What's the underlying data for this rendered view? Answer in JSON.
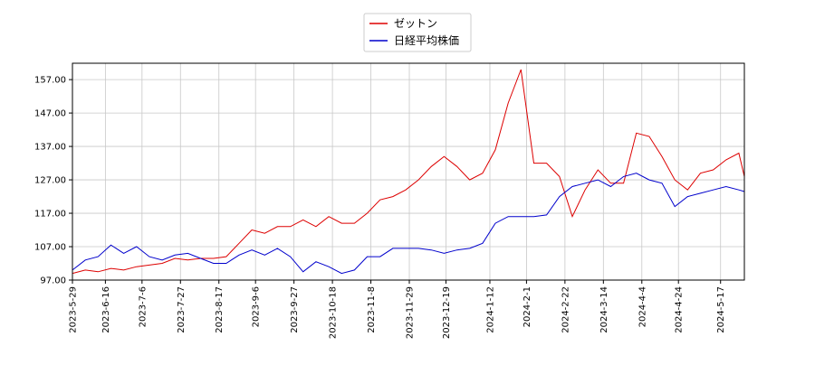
{
  "chart_data": {
    "type": "line",
    "x": [
      "2023-5-29",
      "2023-6-5",
      "2023-6-12",
      "2023-6-19",
      "2023-6-26",
      "2023-7-3",
      "2023-7-10",
      "2023-7-17",
      "2023-7-24",
      "2023-7-31",
      "2023-8-7",
      "2023-8-14",
      "2023-8-21",
      "2023-8-28",
      "2023-9-4",
      "2023-9-11",
      "2023-9-18",
      "2023-9-25",
      "2023-10-2",
      "2023-10-9",
      "2023-10-16",
      "2023-10-23",
      "2023-10-30",
      "2023-11-6",
      "2023-11-13",
      "2023-11-20",
      "2023-11-27",
      "2023-12-4",
      "2023-12-11",
      "2023-12-18",
      "2023-12-25",
      "2024-1-1",
      "2024-1-8",
      "2024-1-15",
      "2024-1-22",
      "2024-1-29",
      "2024-2-5",
      "2024-2-12",
      "2024-2-19",
      "2024-2-26",
      "2024-3-4",
      "2024-3-11",
      "2024-3-18",
      "2024-3-25",
      "2024-4-1",
      "2024-4-8",
      "2024-4-15",
      "2024-4-22",
      "2024-4-29",
      "2024-5-6",
      "2024-5-13",
      "2024-5-20",
      "2024-5-27",
      "2024-5-30"
    ],
    "series": [
      {
        "name": "ゼットン",
        "color": "#dd0000",
        "values": [
          99,
          100,
          99.5,
          100.5,
          100,
          101,
          101.5,
          102,
          103.5,
          103,
          103.5,
          103.5,
          104,
          108,
          112,
          111,
          113,
          113,
          115,
          113,
          116,
          114,
          114,
          117,
          121,
          122,
          124,
          127,
          131,
          134,
          131,
          127,
          129,
          136,
          150,
          160,
          132,
          132,
          128,
          116,
          124,
          130,
          126,
          126,
          141,
          140,
          134,
          127,
          124,
          129,
          130,
          133,
          135,
          128
        ]
      },
      {
        "name": "日経平均株価",
        "color": "#0000cc",
        "values": [
          100,
          103,
          104,
          107.5,
          105,
          107,
          104,
          103,
          104.5,
          105,
          103.5,
          102,
          102,
          104.5,
          106,
          104.5,
          106.5,
          104,
          99.5,
          102.5,
          101,
          99,
          100,
          104,
          104,
          106.5,
          106.5,
          106.5,
          106,
          105,
          106,
          106.5,
          108,
          114,
          116,
          116,
          116,
          116.5,
          122,
          125,
          126,
          127,
          125,
          128,
          129,
          127,
          126,
          119,
          122,
          123,
          124,
          125,
          124,
          123.5
        ]
      }
    ],
    "xlim": [
      "2023-5-29",
      "2024-5-30"
    ],
    "xticks": [
      "2023-5-29",
      "2023-6-16",
      "2023-7-6",
      "2023-7-27",
      "2023-8-17",
      "2023-9-6",
      "2023-9-27",
      "2023-10-18",
      "2023-11-8",
      "2023-11-29",
      "2023-12-19",
      "2024-1-12",
      "2024-2-1",
      "2024-2-22",
      "2024-3-14",
      "2024-4-4",
      "2024-4-24",
      "2024-5-17"
    ],
    "ylim": [
      97,
      161.9
    ],
    "yticks": [
      {
        "value": 97,
        "label": "97.00"
      },
      {
        "value": 107,
        "label": "107.00"
      },
      {
        "value": 117,
        "label": "117.00"
      },
      {
        "value": 127,
        "label": "127.00"
      },
      {
        "value": 137,
        "label": "137.00"
      },
      {
        "value": 147,
        "label": "147.00"
      },
      {
        "value": 157,
        "label": "157.00"
      }
    ],
    "grid": true,
    "legend": "upper center"
  }
}
